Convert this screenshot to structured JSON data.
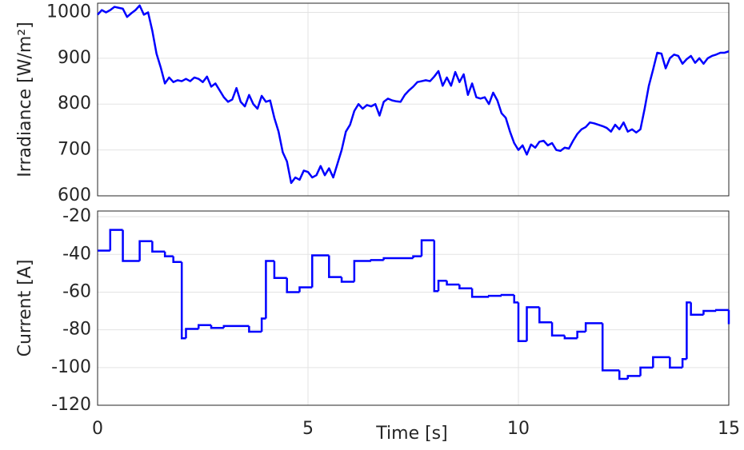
{
  "chart_data": [
    {
      "type": "line",
      "ylabel": "Irradiance [W/m²]",
      "grid": true,
      "show_xticklabels": false,
      "xlim": [
        0,
        15
      ],
      "xticks": [
        0,
        5,
        10,
        15
      ],
      "ylim": [
        600,
        1020
      ],
      "yticks": [
        600,
        700,
        800,
        900,
        1000
      ],
      "x": [
        0,
        0.1,
        0.2,
        0.3,
        0.4,
        0.5,
        0.6,
        0.7,
        0.8,
        0.9,
        1,
        1.1,
        1.2,
        1.3,
        1.4,
        1.5,
        1.6,
        1.7,
        1.8,
        1.9,
        2,
        2.1,
        2.2,
        2.3,
        2.4,
        2.5,
        2.6,
        2.7,
        2.8,
        2.9,
        3,
        3.1,
        3.2,
        3.3,
        3.4,
        3.5,
        3.6,
        3.7,
        3.8,
        3.9,
        4,
        4.1,
        4.2,
        4.3,
        4.4,
        4.5,
        4.6,
        4.7,
        4.8,
        4.9,
        5,
        5.1,
        5.2,
        5.3,
        5.4,
        5.5,
        5.6,
        5.7,
        5.8,
        5.9,
        6,
        6.1,
        6.2,
        6.3,
        6.4,
        6.5,
        6.6,
        6.7,
        6.8,
        6.9,
        7,
        7.1,
        7.2,
        7.3,
        7.4,
        7.5,
        7.6,
        7.7,
        7.8,
        7.9,
        8,
        8.1,
        8.2,
        8.3,
        8.4,
        8.5,
        8.6,
        8.7,
        8.8,
        8.9,
        9,
        9.1,
        9.2,
        9.3,
        9.4,
        9.5,
        9.6,
        9.7,
        9.8,
        9.9,
        10,
        10.1,
        10.2,
        10.3,
        10.4,
        10.5,
        10.6,
        10.7,
        10.8,
        10.9,
        11,
        11.1,
        11.2,
        11.3,
        11.4,
        11.5,
        11.6,
        11.7,
        11.8,
        11.9,
        12,
        12.1,
        12.2,
        12.3,
        12.4,
        12.5,
        12.6,
        12.7,
        12.8,
        12.9,
        13,
        13.1,
        13.2,
        13.3,
        13.4,
        13.5,
        13.6,
        13.7,
        13.8,
        13.9,
        14,
        14.1,
        14.2,
        14.3,
        14.4,
        14.5,
        14.6,
        14.7,
        14.8,
        14.9,
        15
      ],
      "series": [
        {
          "color": "#0000ff",
          "values": [
            995,
            1005,
            1000,
            1005,
            1012,
            1010,
            1008,
            990,
            998,
            1005,
            1015,
            995,
            1000,
            960,
            910,
            880,
            845,
            858,
            848,
            852,
            850,
            855,
            850,
            858,
            855,
            848,
            860,
            838,
            845,
            830,
            815,
            805,
            810,
            835,
            805,
            795,
            820,
            800,
            790,
            818,
            805,
            808,
            770,
            740,
            695,
            675,
            628,
            640,
            635,
            655,
            652,
            640,
            645,
            665,
            645,
            660,
            640,
            670,
            700,
            740,
            755,
            785,
            800,
            790,
            798,
            795,
            800,
            775,
            805,
            812,
            808,
            806,
            805,
            820,
            830,
            838,
            848,
            850,
            852,
            850,
            860,
            872,
            840,
            858,
            840,
            870,
            848,
            865,
            820,
            845,
            815,
            812,
            815,
            800,
            825,
            808,
            780,
            770,
            740,
            715,
            700,
            710,
            690,
            712,
            705,
            718,
            720,
            710,
            715,
            700,
            698,
            705,
            703,
            720,
            735,
            745,
            750,
            760,
            758,
            755,
            752,
            748,
            740,
            755,
            745,
            760,
            740,
            745,
            738,
            745,
            790,
            840,
            875,
            912,
            910,
            878,
            900,
            908,
            905,
            888,
            898,
            905,
            890,
            900,
            888,
            900,
            905,
            908,
            912,
            912,
            915
          ]
        }
      ]
    },
    {
      "type": "step",
      "ylabel": "Current [A]",
      "xlabel": "Time [s]",
      "grid": true,
      "show_xticklabels": true,
      "xlim": [
        0,
        15
      ],
      "xticks": [
        0,
        5,
        10,
        15
      ],
      "ylim": [
        -120,
        -17
      ],
      "yticks": [
        -120,
        -100,
        -80,
        -60,
        -40,
        -20
      ],
      "x": [
        0,
        0.3,
        0.6,
        1,
        1.3,
        1.6,
        1.8,
        2,
        2.1,
        2.4,
        2.7,
        3,
        3.6,
        3.9,
        4,
        4.2,
        4.5,
        4.8,
        5.1,
        5.5,
        5.8,
        6.1,
        6.5,
        6.8,
        7.5,
        7.7,
        8,
        8.1,
        8.3,
        8.6,
        8.9,
        9.3,
        9.6,
        9.9,
        10,
        10.2,
        10.5,
        10.8,
        11.1,
        11.4,
        11.6,
        12,
        12.4,
        12.6,
        12.9,
        13.2,
        13.6,
        13.9,
        14,
        14.1,
        14.4,
        14.7,
        15
      ],
      "series": [
        {
          "color": "#0000ff",
          "values": [
            -38,
            -27,
            -43.5,
            -33,
            -38.5,
            -41,
            -44,
            -84.5,
            -79.5,
            -77.5,
            -79,
            -78,
            -81,
            -74,
            -43.5,
            -52.5,
            -60,
            -57.5,
            -40.5,
            -52,
            -54.5,
            -43.5,
            -43,
            -42,
            -41,
            -32.5,
            -59.5,
            -54,
            -56,
            -58,
            -62.5,
            -62,
            -61.5,
            -65.5,
            -86,
            -68,
            -76,
            -83,
            -84.5,
            -81,
            -76.5,
            -101.5,
            -106,
            -104.5,
            -100,
            -94.5,
            -100,
            -95.5,
            -65.5,
            -72,
            -70,
            -69.5,
            -77
          ]
        }
      ]
    }
  ]
}
